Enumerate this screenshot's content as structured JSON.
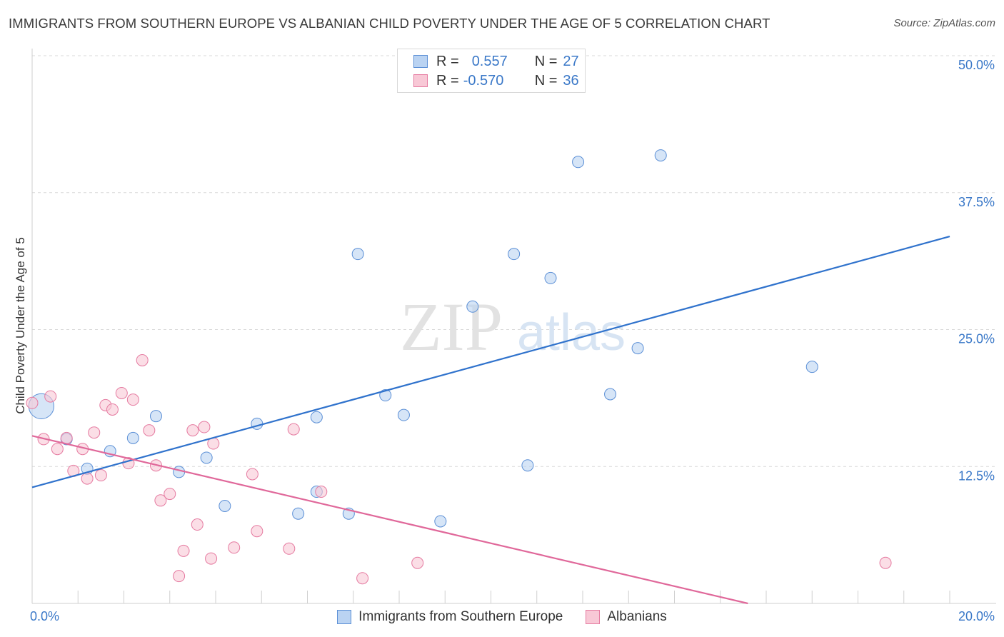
{
  "title": "IMMIGRANTS FROM SOUTHERN EUROPE VS ALBANIAN CHILD POVERTY UNDER THE AGE OF 5 CORRELATION CHART",
  "source": "Source: ZipAtlas.com",
  "watermark": {
    "zip": "ZIP",
    "atlas": "atlas"
  },
  "legend": {
    "rows": [
      {
        "r_label": "R =",
        "r_value": "0.557",
        "n_label": "N =",
        "n_value": "27"
      },
      {
        "r_label": "R =",
        "r_value": "-0.570",
        "n_label": "N =",
        "n_value": "36"
      }
    ]
  },
  "bottom_legend": [
    "Immigrants from Southern Europe",
    "Albanians"
  ],
  "colors": {
    "blue_fill": "#bad3f2",
    "blue_edge": "#5b8fd6",
    "blue_line": "#2f72cc",
    "pink_fill": "#f8c8d6",
    "pink_edge": "#e57aa0",
    "pink_line": "#e0689a",
    "axis_text": "#3a78c8",
    "grid": "#d8d8d8"
  },
  "chart_data": {
    "type": "scatter",
    "xlabel": "",
    "ylabel": "Child Poverty Under the Age of 5",
    "xlim": [
      0,
      20
    ],
    "ylim": [
      0,
      50
    ],
    "x_tick_labels": [
      {
        "value": 0,
        "label": "0.0%"
      },
      {
        "value": 20,
        "label": "20.0%"
      }
    ],
    "y_tick_labels": [
      {
        "value": 12.5,
        "label": "12.5%"
      },
      {
        "value": 25,
        "label": "25.0%"
      },
      {
        "value": 37.5,
        "label": "37.5%"
      },
      {
        "value": 50,
        "label": "50.0%"
      }
    ],
    "grid": true,
    "series": [
      {
        "name": "Immigrants from Southern Europe",
        "color": "blue",
        "points": [
          [
            0.2,
            18.0,
            2.2
          ],
          [
            0.75,
            15.0,
            1
          ],
          [
            1.2,
            12.3,
            1
          ],
          [
            1.7,
            13.9,
            1
          ],
          [
            2.2,
            15.1,
            1
          ],
          [
            2.7,
            17.1,
            1
          ],
          [
            3.2,
            12.0,
            1
          ],
          [
            3.8,
            13.3,
            1
          ],
          [
            4.2,
            8.9,
            1
          ],
          [
            4.9,
            16.4,
            1
          ],
          [
            5.8,
            8.2,
            1
          ],
          [
            6.2,
            10.2,
            1
          ],
          [
            6.2,
            17.0,
            1
          ],
          [
            6.9,
            8.2,
            1
          ],
          [
            7.1,
            31.9,
            1
          ],
          [
            7.7,
            19.0,
            1
          ],
          [
            8.1,
            17.2,
            1
          ],
          [
            8.9,
            7.5,
            1
          ],
          [
            9.6,
            27.1,
            1
          ],
          [
            10.5,
            31.9,
            1
          ],
          [
            10.8,
            12.6,
            1
          ],
          [
            11.3,
            29.7,
            1
          ],
          [
            11.9,
            40.3,
            1
          ],
          [
            12.6,
            19.1,
            1
          ],
          [
            13.2,
            23.3,
            1
          ],
          [
            13.7,
            40.9,
            1
          ],
          [
            17.0,
            21.6,
            1
          ]
        ],
        "trend": {
          "x": [
            0,
            20
          ],
          "y": [
            10.6,
            33.5
          ]
        }
      },
      {
        "name": "Albanians",
        "color": "pink",
        "points": [
          [
            0.0,
            18.3,
            1
          ],
          [
            0.25,
            15.0,
            1
          ],
          [
            0.4,
            18.9,
            1
          ],
          [
            0.55,
            14.1,
            1
          ],
          [
            0.75,
            15.1,
            1
          ],
          [
            0.9,
            12.1,
            1
          ],
          [
            1.1,
            14.1,
            1
          ],
          [
            1.2,
            11.4,
            1
          ],
          [
            1.35,
            15.6,
            1
          ],
          [
            1.5,
            11.7,
            1
          ],
          [
            1.6,
            18.1,
            1
          ],
          [
            1.75,
            17.7,
            1
          ],
          [
            1.95,
            19.2,
            1
          ],
          [
            2.1,
            12.8,
            1
          ],
          [
            2.2,
            18.6,
            1
          ],
          [
            2.4,
            22.2,
            1
          ],
          [
            2.55,
            15.8,
            1
          ],
          [
            2.7,
            12.6,
            1
          ],
          [
            2.8,
            9.4,
            1
          ],
          [
            3.0,
            10.0,
            1
          ],
          [
            3.2,
            2.5,
            1
          ],
          [
            3.3,
            4.8,
            1
          ],
          [
            3.5,
            15.8,
            1
          ],
          [
            3.6,
            7.2,
            1
          ],
          [
            3.75,
            16.1,
            1
          ],
          [
            3.9,
            4.1,
            1
          ],
          [
            3.95,
            14.6,
            1
          ],
          [
            4.4,
            5.1,
            1
          ],
          [
            4.8,
            11.8,
            1
          ],
          [
            4.9,
            6.6,
            1
          ],
          [
            5.6,
            5.0,
            1
          ],
          [
            5.7,
            15.9,
            1
          ],
          [
            6.3,
            10.2,
            1
          ],
          [
            7.2,
            2.3,
            1
          ],
          [
            8.4,
            3.7,
            1
          ],
          [
            18.6,
            3.7,
            1
          ]
        ],
        "trend": {
          "x": [
            0,
            15.6
          ],
          "y": [
            15.3,
            0
          ]
        }
      }
    ]
  }
}
